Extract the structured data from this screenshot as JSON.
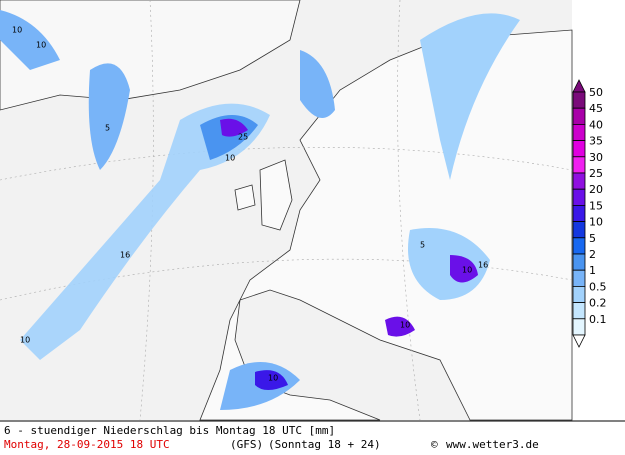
{
  "legend": {
    "levels": [
      {
        "value": 50,
        "color": "#7a0a7a"
      },
      {
        "value": 45,
        "color": "#a800a8"
      },
      {
        "value": 40,
        "color": "#cc00cc"
      },
      {
        "value": 35,
        "color": "#e000e0"
      },
      {
        "value": 30,
        "color": "#f020f0"
      },
      {
        "value": 25,
        "color": "#9010e0"
      },
      {
        "value": 20,
        "color": "#6a10e8"
      },
      {
        "value": 15,
        "color": "#3a18e8"
      },
      {
        "value": 10,
        "color": "#1438e0"
      },
      {
        "value": 5,
        "color": "#1868f0"
      },
      {
        "value": 2,
        "color": "#4a94f0"
      },
      {
        "value": 1,
        "color": "#78b4f8"
      },
      {
        "value": 0.5,
        "color": "#a2d2fc"
      },
      {
        "value": 0.2,
        "color": "#c4e6fe"
      },
      {
        "value": 0.1,
        "color": "#e4f6ff"
      }
    ]
  },
  "contour_labels": [
    "10",
    "5",
    "25",
    "10",
    "10",
    "16",
    "10",
    "5",
    "10",
    "10",
    "16",
    "10"
  ],
  "footer": {
    "description": "6 - stuendiger Niederschlag bis Montag 18 UTC [mm]",
    "date": "Montag, 28-09-2015  18 UTC",
    "model": "(GFS)",
    "run": "(Sonntag 18 + 24)",
    "credit": "www.wetter3.de"
  }
}
